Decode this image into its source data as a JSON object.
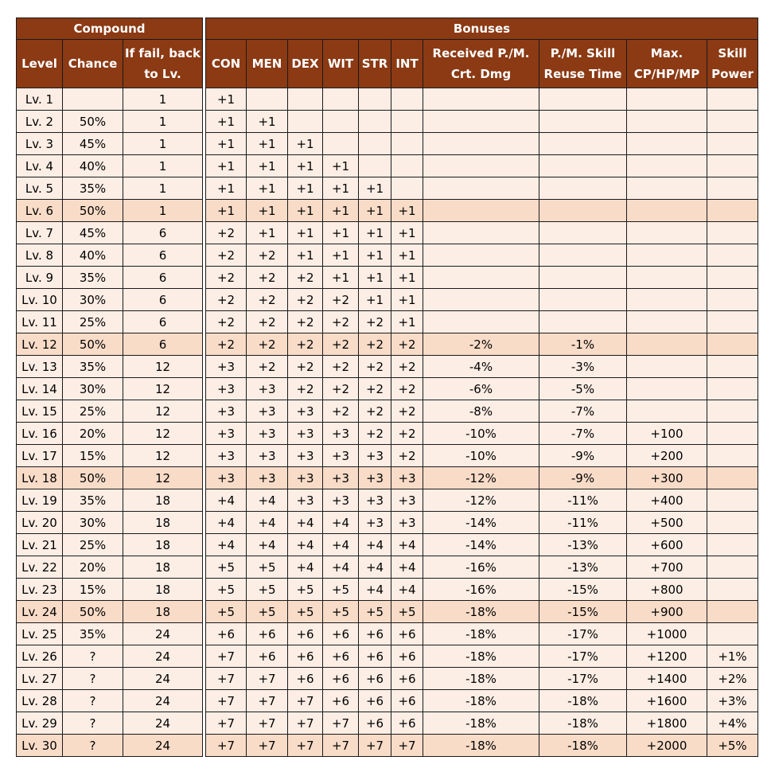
{
  "compound": {
    "title": "Compound",
    "headers": [
      "Level",
      "Chance",
      "If fail, back to Lv."
    ],
    "rows": [
      [
        "Lv. 1",
        "",
        "1"
      ],
      [
        "Lv. 2",
        "50%",
        "1"
      ],
      [
        "Lv. 3",
        "45%",
        "1"
      ],
      [
        "Lv. 4",
        "40%",
        "1"
      ],
      [
        "Lv. 5",
        "35%",
        "1"
      ],
      [
        "Lv. 6",
        "50%",
        "1"
      ],
      [
        "Lv. 7",
        "45%",
        "6"
      ],
      [
        "Lv. 8",
        "40%",
        "6"
      ],
      [
        "Lv. 9",
        "35%",
        "6"
      ],
      [
        "Lv. 10",
        "30%",
        "6"
      ],
      [
        "Lv. 11",
        "25%",
        "6"
      ],
      [
        "Lv. 12",
        "50%",
        "6"
      ],
      [
        "Lv. 13",
        "35%",
        "12"
      ],
      [
        "Lv. 14",
        "30%",
        "12"
      ],
      [
        "Lv. 15",
        "25%",
        "12"
      ],
      [
        "Lv. 16",
        "20%",
        "12"
      ],
      [
        "Lv. 17",
        "15%",
        "12"
      ],
      [
        "Lv. 18",
        "50%",
        "12"
      ],
      [
        "Lv. 19",
        "35%",
        "18"
      ],
      [
        "Lv. 20",
        "30%",
        "18"
      ],
      [
        "Lv. 21",
        "25%",
        "18"
      ],
      [
        "Lv. 22",
        "20%",
        "18"
      ],
      [
        "Lv. 23",
        "15%",
        "18"
      ],
      [
        "Lv. 24",
        "50%",
        "18"
      ],
      [
        "Lv. 25",
        "35%",
        "24"
      ],
      [
        "Lv. 26",
        "?",
        "24"
      ],
      [
        "Lv. 27",
        "?",
        "24"
      ],
      [
        "Lv. 28",
        "?",
        "24"
      ],
      [
        "Lv. 29",
        "?",
        "24"
      ],
      [
        "Lv. 30",
        "?",
        "24"
      ]
    ]
  },
  "bonuses": {
    "title": "Bonuses",
    "headers": [
      "CON",
      "MEN",
      "DEX",
      "WIT",
      "STR",
      "INT",
      "Received P./M. Crt. Dmg",
      "P./M. Skill Reuse Time",
      "Max. CP/HP/MP",
      "Skill Power"
    ],
    "rows": [
      [
        "+1",
        "",
        "",
        "",
        "",
        "",
        "",
        "",
        "",
        ""
      ],
      [
        "+1",
        "+1",
        "",
        "",
        "",
        "",
        "",
        "",
        "",
        ""
      ],
      [
        "+1",
        "+1",
        "+1",
        "",
        "",
        "",
        "",
        "",
        "",
        ""
      ],
      [
        "+1",
        "+1",
        "+1",
        "+1",
        "",
        "",
        "",
        "",
        "",
        ""
      ],
      [
        "+1",
        "+1",
        "+1",
        "+1",
        "+1",
        "",
        "",
        "",
        "",
        ""
      ],
      [
        "+1",
        "+1",
        "+1",
        "+1",
        "+1",
        "+1",
        "",
        "",
        "",
        ""
      ],
      [
        "+2",
        "+1",
        "+1",
        "+1",
        "+1",
        "+1",
        "",
        "",
        "",
        ""
      ],
      [
        "+2",
        "+2",
        "+1",
        "+1",
        "+1",
        "+1",
        "",
        "",
        "",
        ""
      ],
      [
        "+2",
        "+2",
        "+2",
        "+1",
        "+1",
        "+1",
        "",
        "",
        "",
        ""
      ],
      [
        "+2",
        "+2",
        "+2",
        "+2",
        "+1",
        "+1",
        "",
        "",
        "",
        ""
      ],
      [
        "+2",
        "+2",
        "+2",
        "+2",
        "+2",
        "+1",
        "",
        "",
        "",
        ""
      ],
      [
        "+2",
        "+2",
        "+2",
        "+2",
        "+2",
        "+2",
        "-2%",
        "-1%",
        "",
        ""
      ],
      [
        "+3",
        "+2",
        "+2",
        "+2",
        "+2",
        "+2",
        "-4%",
        "-3%",
        "",
        ""
      ],
      [
        "+3",
        "+3",
        "+2",
        "+2",
        "+2",
        "+2",
        "-6%",
        "-5%",
        "",
        ""
      ],
      [
        "+3",
        "+3",
        "+3",
        "+2",
        "+2",
        "+2",
        "-8%",
        "-7%",
        "",
        ""
      ],
      [
        "+3",
        "+3",
        "+3",
        "+3",
        "+2",
        "+2",
        "-10%",
        "-7%",
        "+100",
        ""
      ],
      [
        "+3",
        "+3",
        "+3",
        "+3",
        "+3",
        "+2",
        "-10%",
        "-9%",
        "+200",
        ""
      ],
      [
        "+3",
        "+3",
        "+3",
        "+3",
        "+3",
        "+3",
        "-12%",
        "-9%",
        "+300",
        ""
      ],
      [
        "+4",
        "+4",
        "+3",
        "+3",
        "+3",
        "+3",
        "-12%",
        "-11%",
        "+400",
        ""
      ],
      [
        "+4",
        "+4",
        "+4",
        "+4",
        "+3",
        "+3",
        "-14%",
        "-11%",
        "+500",
        ""
      ],
      [
        "+4",
        "+4",
        "+4",
        "+4",
        "+4",
        "+4",
        "-14%",
        "-13%",
        "+600",
        ""
      ],
      [
        "+5",
        "+5",
        "+4",
        "+4",
        "+4",
        "+4",
        "-16%",
        "-13%",
        "+700",
        ""
      ],
      [
        "+5",
        "+5",
        "+5",
        "+5",
        "+4",
        "+4",
        "-16%",
        "-15%",
        "+800",
        ""
      ],
      [
        "+5",
        "+5",
        "+5",
        "+5",
        "+5",
        "+5",
        "-18%",
        "-15%",
        "+900",
        ""
      ],
      [
        "+6",
        "+6",
        "+6",
        "+6",
        "+6",
        "+6",
        "-18%",
        "-17%",
        "+1000",
        ""
      ],
      [
        "+7",
        "+6",
        "+6",
        "+6",
        "+6",
        "+6",
        "-18%",
        "-17%",
        "+1200",
        "+1%"
      ],
      [
        "+7",
        "+7",
        "+6",
        "+6",
        "+6",
        "+6",
        "-18%",
        "-17%",
        "+1400",
        "+2%"
      ],
      [
        "+7",
        "+7",
        "+7",
        "+6",
        "+6",
        "+6",
        "-18%",
        "-18%",
        "+1600",
        "+3%"
      ],
      [
        "+7",
        "+7",
        "+7",
        "+7",
        "+6",
        "+6",
        "-18%",
        "-18%",
        "+1800",
        "+4%"
      ],
      [
        "+7",
        "+7",
        "+7",
        "+7",
        "+7",
        "+7",
        "-18%",
        "-18%",
        "+2000",
        "+5%"
      ]
    ]
  },
  "milestone_levels": [
    "Lv. 6",
    "Lv. 12",
    "Lv. 18",
    "Lv. 24",
    "Lv. 30"
  ],
  "colors": {
    "header_bg": "#8b3a14",
    "row_bg": "#fdeee5",
    "milestone_bg": "#f8dcc8"
  }
}
